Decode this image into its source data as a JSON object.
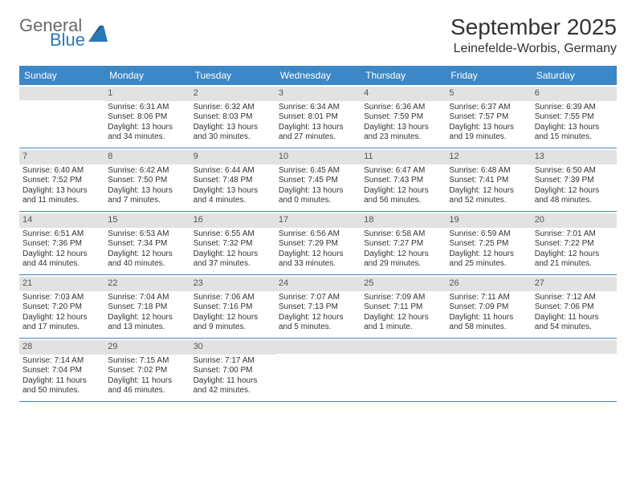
{
  "logo": {
    "line1": "General",
    "line2": "Blue",
    "triangle_color": "#2a78ba",
    "text_gray": "#6a6a6a",
    "text_blue": "#2a78ba"
  },
  "header": {
    "month_title": "September 2025",
    "location": "Leinefelde-Worbis, Germany"
  },
  "colors": {
    "header_bg": "#3c87c7",
    "daynum_bg": "#e2e2e2",
    "border": "#3c87c7"
  },
  "day_names": [
    "Sunday",
    "Monday",
    "Tuesday",
    "Wednesday",
    "Thursday",
    "Friday",
    "Saturday"
  ],
  "weeks": [
    [
      {
        "num": "",
        "sunrise": "",
        "sunset": "",
        "daylight1": "",
        "daylight2": ""
      },
      {
        "num": "1",
        "sunrise": "Sunrise: 6:31 AM",
        "sunset": "Sunset: 8:06 PM",
        "daylight1": "Daylight: 13 hours",
        "daylight2": "and 34 minutes."
      },
      {
        "num": "2",
        "sunrise": "Sunrise: 6:32 AM",
        "sunset": "Sunset: 8:03 PM",
        "daylight1": "Daylight: 13 hours",
        "daylight2": "and 30 minutes."
      },
      {
        "num": "3",
        "sunrise": "Sunrise: 6:34 AM",
        "sunset": "Sunset: 8:01 PM",
        "daylight1": "Daylight: 13 hours",
        "daylight2": "and 27 minutes."
      },
      {
        "num": "4",
        "sunrise": "Sunrise: 6:36 AM",
        "sunset": "Sunset: 7:59 PM",
        "daylight1": "Daylight: 13 hours",
        "daylight2": "and 23 minutes."
      },
      {
        "num": "5",
        "sunrise": "Sunrise: 6:37 AM",
        "sunset": "Sunset: 7:57 PM",
        "daylight1": "Daylight: 13 hours",
        "daylight2": "and 19 minutes."
      },
      {
        "num": "6",
        "sunrise": "Sunrise: 6:39 AM",
        "sunset": "Sunset: 7:55 PM",
        "daylight1": "Daylight: 13 hours",
        "daylight2": "and 15 minutes."
      }
    ],
    [
      {
        "num": "7",
        "sunrise": "Sunrise: 6:40 AM",
        "sunset": "Sunset: 7:52 PM",
        "daylight1": "Daylight: 13 hours",
        "daylight2": "and 11 minutes."
      },
      {
        "num": "8",
        "sunrise": "Sunrise: 6:42 AM",
        "sunset": "Sunset: 7:50 PM",
        "daylight1": "Daylight: 13 hours",
        "daylight2": "and 7 minutes."
      },
      {
        "num": "9",
        "sunrise": "Sunrise: 6:44 AM",
        "sunset": "Sunset: 7:48 PM",
        "daylight1": "Daylight: 13 hours",
        "daylight2": "and 4 minutes."
      },
      {
        "num": "10",
        "sunrise": "Sunrise: 6:45 AM",
        "sunset": "Sunset: 7:45 PM",
        "daylight1": "Daylight: 13 hours",
        "daylight2": "and 0 minutes."
      },
      {
        "num": "11",
        "sunrise": "Sunrise: 6:47 AM",
        "sunset": "Sunset: 7:43 PM",
        "daylight1": "Daylight: 12 hours",
        "daylight2": "and 56 minutes."
      },
      {
        "num": "12",
        "sunrise": "Sunrise: 6:48 AM",
        "sunset": "Sunset: 7:41 PM",
        "daylight1": "Daylight: 12 hours",
        "daylight2": "and 52 minutes."
      },
      {
        "num": "13",
        "sunrise": "Sunrise: 6:50 AM",
        "sunset": "Sunset: 7:39 PM",
        "daylight1": "Daylight: 12 hours",
        "daylight2": "and 48 minutes."
      }
    ],
    [
      {
        "num": "14",
        "sunrise": "Sunrise: 6:51 AM",
        "sunset": "Sunset: 7:36 PM",
        "daylight1": "Daylight: 12 hours",
        "daylight2": "and 44 minutes."
      },
      {
        "num": "15",
        "sunrise": "Sunrise: 6:53 AM",
        "sunset": "Sunset: 7:34 PM",
        "daylight1": "Daylight: 12 hours",
        "daylight2": "and 40 minutes."
      },
      {
        "num": "16",
        "sunrise": "Sunrise: 6:55 AM",
        "sunset": "Sunset: 7:32 PM",
        "daylight1": "Daylight: 12 hours",
        "daylight2": "and 37 minutes."
      },
      {
        "num": "17",
        "sunrise": "Sunrise: 6:56 AM",
        "sunset": "Sunset: 7:29 PM",
        "daylight1": "Daylight: 12 hours",
        "daylight2": "and 33 minutes."
      },
      {
        "num": "18",
        "sunrise": "Sunrise: 6:58 AM",
        "sunset": "Sunset: 7:27 PM",
        "daylight1": "Daylight: 12 hours",
        "daylight2": "and 29 minutes."
      },
      {
        "num": "19",
        "sunrise": "Sunrise: 6:59 AM",
        "sunset": "Sunset: 7:25 PM",
        "daylight1": "Daylight: 12 hours",
        "daylight2": "and 25 minutes."
      },
      {
        "num": "20",
        "sunrise": "Sunrise: 7:01 AM",
        "sunset": "Sunset: 7:22 PM",
        "daylight1": "Daylight: 12 hours",
        "daylight2": "and 21 minutes."
      }
    ],
    [
      {
        "num": "21",
        "sunrise": "Sunrise: 7:03 AM",
        "sunset": "Sunset: 7:20 PM",
        "daylight1": "Daylight: 12 hours",
        "daylight2": "and 17 minutes."
      },
      {
        "num": "22",
        "sunrise": "Sunrise: 7:04 AM",
        "sunset": "Sunset: 7:18 PM",
        "daylight1": "Daylight: 12 hours",
        "daylight2": "and 13 minutes."
      },
      {
        "num": "23",
        "sunrise": "Sunrise: 7:06 AM",
        "sunset": "Sunset: 7:16 PM",
        "daylight1": "Daylight: 12 hours",
        "daylight2": "and 9 minutes."
      },
      {
        "num": "24",
        "sunrise": "Sunrise: 7:07 AM",
        "sunset": "Sunset: 7:13 PM",
        "daylight1": "Daylight: 12 hours",
        "daylight2": "and 5 minutes."
      },
      {
        "num": "25",
        "sunrise": "Sunrise: 7:09 AM",
        "sunset": "Sunset: 7:11 PM",
        "daylight1": "Daylight: 12 hours",
        "daylight2": "and 1 minute."
      },
      {
        "num": "26",
        "sunrise": "Sunrise: 7:11 AM",
        "sunset": "Sunset: 7:09 PM",
        "daylight1": "Daylight: 11 hours",
        "daylight2": "and 58 minutes."
      },
      {
        "num": "27",
        "sunrise": "Sunrise: 7:12 AM",
        "sunset": "Sunset: 7:06 PM",
        "daylight1": "Daylight: 11 hours",
        "daylight2": "and 54 minutes."
      }
    ],
    [
      {
        "num": "28",
        "sunrise": "Sunrise: 7:14 AM",
        "sunset": "Sunset: 7:04 PM",
        "daylight1": "Daylight: 11 hours",
        "daylight2": "and 50 minutes."
      },
      {
        "num": "29",
        "sunrise": "Sunrise: 7:15 AM",
        "sunset": "Sunset: 7:02 PM",
        "daylight1": "Daylight: 11 hours",
        "daylight2": "and 46 minutes."
      },
      {
        "num": "30",
        "sunrise": "Sunrise: 7:17 AM",
        "sunset": "Sunset: 7:00 PM",
        "daylight1": "Daylight: 11 hours",
        "daylight2": "and 42 minutes."
      },
      {
        "num": "",
        "sunrise": "",
        "sunset": "",
        "daylight1": "",
        "daylight2": ""
      },
      {
        "num": "",
        "sunrise": "",
        "sunset": "",
        "daylight1": "",
        "daylight2": ""
      },
      {
        "num": "",
        "sunrise": "",
        "sunset": "",
        "daylight1": "",
        "daylight2": ""
      },
      {
        "num": "",
        "sunrise": "",
        "sunset": "",
        "daylight1": "",
        "daylight2": ""
      }
    ]
  ]
}
